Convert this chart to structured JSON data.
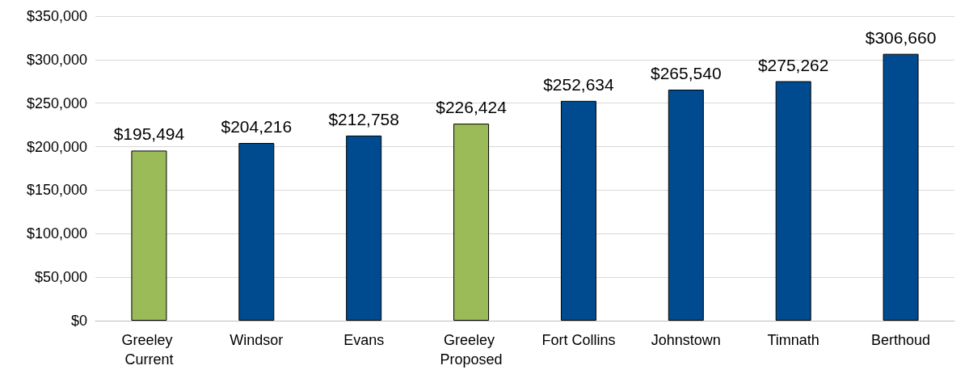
{
  "chart_data": {
    "type": "bar",
    "categories": [
      "Greeley Current",
      "Windsor",
      "Evans",
      "Greeley Proposed",
      "Fort Collins",
      "Johnstown",
      "Timnath",
      "Berthoud"
    ],
    "values": [
      195494,
      204216,
      212758,
      226424,
      252634,
      265540,
      275262,
      306660
    ],
    "colors": [
      "#9bbb59",
      "#004a8f",
      "#004a8f",
      "#9bbb59",
      "#004a8f",
      "#004a8f",
      "#004a8f",
      "#004a8f"
    ],
    "value_labels": [
      "$195,494",
      "$204,216",
      "$212,758",
      "$226,424",
      "$252,634",
      "$265,540",
      "$275,262",
      "$306,660"
    ],
    "ylim": [
      0,
      350000
    ],
    "yticks": [
      {
        "value": 0,
        "label": "$0"
      },
      {
        "value": 50000,
        "label": "$50,000"
      },
      {
        "value": 100000,
        "label": "$100,000"
      },
      {
        "value": 150000,
        "label": "$150,000"
      },
      {
        "value": 200000,
        "label": "$200,000"
      },
      {
        "value": 250000,
        "label": "$250,000"
      },
      {
        "value": 300000,
        "label": "$300,000"
      },
      {
        "value": 350000,
        "label": "$350,000"
      }
    ],
    "grid": "y"
  }
}
